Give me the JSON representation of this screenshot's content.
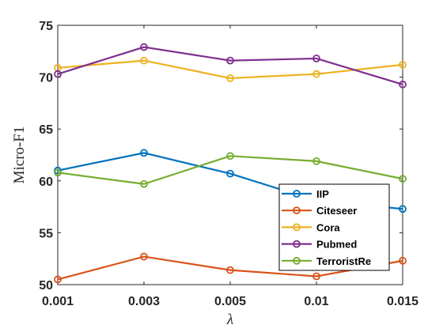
{
  "chart_data": {
    "type": "line",
    "categories": [
      "0.001",
      "0.003",
      "0.005",
      "0.01",
      "0.015"
    ],
    "xlabel": "λ",
    "ylabel": "Micro-F1",
    "ylim": [
      50,
      75
    ],
    "yticks": [
      50,
      55,
      60,
      65,
      70,
      75
    ],
    "grid": false,
    "legend_position": "bottom-right",
    "marker": "open-circle",
    "series": [
      {
        "name": "IIP",
        "color": "#0072BD",
        "values": [
          61.0,
          62.7,
          60.7,
          58.1,
          57.3
        ]
      },
      {
        "name": "Citeseer",
        "color": "#D95319",
        "values": [
          50.5,
          52.7,
          51.4,
          50.8,
          52.3
        ]
      },
      {
        "name": "Cora",
        "color": "#EDB120",
        "values": [
          70.9,
          71.6,
          69.9,
          70.3,
          71.2
        ]
      },
      {
        "name": "Pubmed",
        "color": "#7E2F8E",
        "values": [
          70.3,
          72.9,
          71.6,
          71.8,
          69.3
        ]
      },
      {
        "name": "TerroristRe",
        "color": "#77AC30",
        "values": [
          60.8,
          59.7,
          62.4,
          61.9,
          60.2
        ]
      }
    ]
  }
}
